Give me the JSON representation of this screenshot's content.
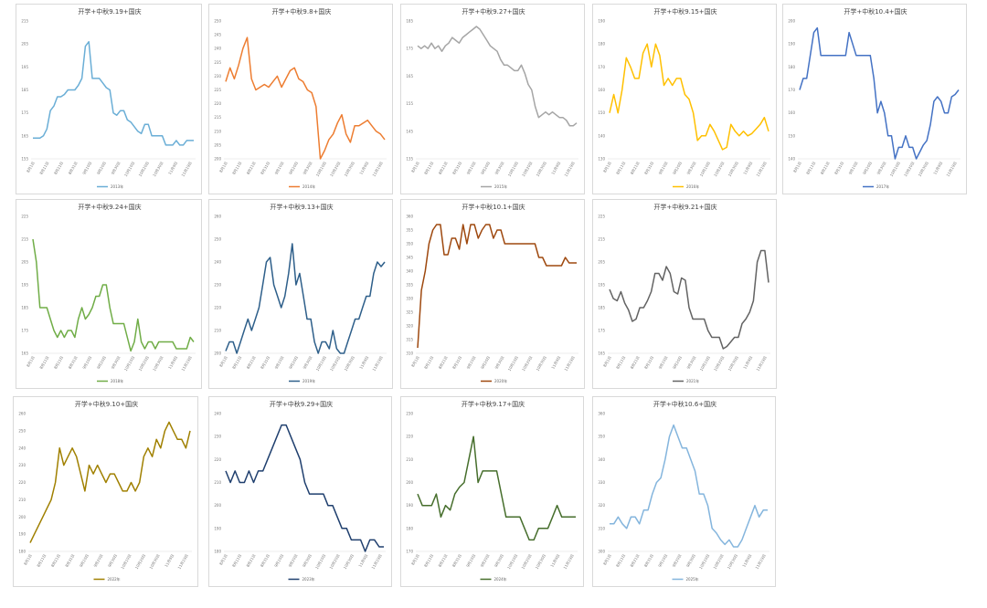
{
  "x_labels": [
    "8月1日",
    "8月11日",
    "8月21日",
    "8月31日",
    "9月10日",
    "9月20日",
    "9月30日",
    "10月10日",
    "10月20日",
    "10月30日",
    "11月9日",
    "11月19日"
  ],
  "chart_data": [
    {
      "type": "line",
      "title": "开学+中秋9.19+国庆",
      "legend": "2013年",
      "color": "#6aaed6",
      "ylim": [
        155,
        215
      ],
      "yticks": [
        155,
        165,
        175,
        185,
        195,
        205,
        215
      ],
      "values": [
        164,
        164,
        164,
        165,
        168,
        176,
        178,
        182,
        182,
        183,
        185,
        185,
        185,
        187,
        190,
        204,
        206,
        190,
        190,
        190,
        188,
        186,
        185,
        175,
        174,
        176,
        176,
        172,
        171,
        169,
        167,
        166,
        170,
        170,
        165,
        165,
        165,
        165,
        161,
        161,
        161,
        163,
        161,
        161,
        163,
        163,
        163
      ]
    },
    {
      "type": "line",
      "title": "开学+中秋9.8+国庆",
      "legend": "2014年",
      "color": "#ed7d31",
      "ylim": [
        200,
        250
      ],
      "yticks": [
        200,
        205,
        210,
        215,
        220,
        225,
        230,
        235,
        240,
        245,
        250
      ],
      "values": [
        228,
        233,
        229,
        234,
        240,
        244,
        229,
        225,
        226,
        227,
        226,
        228,
        230,
        226,
        229,
        232,
        233,
        229,
        228,
        225,
        224,
        219,
        200,
        203,
        207,
        209,
        213,
        216,
        209,
        206,
        212,
        212,
        213,
        214,
        212,
        210,
        209,
        207
      ]
    },
    {
      "type": "line",
      "title": "开学+中秋9.27+国庆",
      "legend": "2015年",
      "color": "#a5a5a5",
      "ylim": [
        135,
        185
      ],
      "yticks": [
        135,
        145,
        155,
        165,
        175,
        185
      ],
      "values": [
        176,
        175,
        176,
        175,
        177,
        175,
        176,
        174,
        176,
        177,
        179,
        178,
        177,
        179,
        180,
        181,
        182,
        183,
        182,
        180,
        178,
        176,
        175,
        174,
        171,
        169,
        169,
        168,
        167,
        167,
        169,
        166,
        162,
        160,
        154,
        150,
        151,
        152,
        151,
        152,
        151,
        150,
        150,
        149,
        147,
        147,
        148
      ]
    },
    {
      "type": "line",
      "title": "开学+中秋9.15+国庆",
      "legend": "2016年",
      "color": "#ffc000",
      "ylim": [
        130,
        190
      ],
      "yticks": [
        130,
        140,
        150,
        160,
        170,
        180,
        190
      ],
      "values": [
        150,
        158,
        150,
        160,
        174,
        170,
        165,
        165,
        176,
        180,
        170,
        180,
        175,
        162,
        165,
        162,
        165,
        165,
        158,
        156,
        150,
        138,
        140,
        140,
        145,
        142,
        138,
        134,
        135,
        145,
        142,
        140,
        142,
        140,
        141,
        143,
        145,
        148,
        142
      ]
    },
    {
      "type": "line",
      "title": "开学+中秋10.4+国庆",
      "legend": "2017年",
      "color": "#4472c4",
      "ylim": [
        140,
        200
      ],
      "yticks": [
        140,
        150,
        160,
        170,
        180,
        190,
        200
      ],
      "values": [
        170,
        175,
        175,
        185,
        195,
        197,
        185,
        185,
        185,
        185,
        185,
        185,
        185,
        185,
        195,
        190,
        185,
        185,
        185,
        185,
        185,
        175,
        160,
        165,
        160,
        150,
        150,
        140,
        145,
        145,
        150,
        145,
        145,
        140,
        143,
        146,
        148,
        155,
        165,
        167,
        165,
        160,
        160,
        167,
        168,
        170
      ]
    },
    {
      "type": "line",
      "title": "开学+中秋9.24+国庆",
      "legend": "2018年",
      "color": "#70ad47",
      "ylim": [
        165,
        225
      ],
      "yticks": [
        165,
        175,
        185,
        195,
        205,
        215,
        225
      ],
      "values": [
        215,
        205,
        185,
        185,
        185,
        180,
        175,
        172,
        175,
        172,
        175,
        175,
        172,
        180,
        185,
        180,
        182,
        185,
        190,
        190,
        195,
        195,
        185,
        178,
        178,
        178,
        178,
        172,
        166,
        170,
        180,
        170,
        167,
        170,
        170,
        167,
        170,
        170,
        170,
        170,
        170,
        167,
        167,
        167,
        167,
        172,
        170
      ]
    },
    {
      "type": "line",
      "title": "开学+中秋9.13+国庆",
      "legend": "2019年",
      "color": "#2e5f8a",
      "ylim": [
        200,
        260
      ],
      "yticks": [
        200,
        210,
        220,
        230,
        240,
        250,
        260
      ],
      "values": [
        201,
        205,
        205,
        200,
        205,
        210,
        215,
        210,
        215,
        220,
        230,
        240,
        242,
        230,
        225,
        220,
        225,
        235,
        248,
        230,
        235,
        225,
        215,
        215,
        205,
        200,
        205,
        205,
        202,
        210,
        202,
        200,
        200,
        205,
        210,
        215,
        215,
        220,
        225,
        225,
        235,
        240,
        238,
        240
      ]
    },
    {
      "type": "line",
      "title": "开学+中秋10.1+国庆",
      "legend": "2020年",
      "color": "#9e480e",
      "ylim": [
        310,
        360
      ],
      "yticks": [
        310,
        315,
        320,
        325,
        330,
        335,
        340,
        345,
        350,
        355,
        360
      ],
      "values": [
        312,
        333,
        340,
        350,
        355,
        357,
        357,
        346,
        346,
        352,
        352,
        348,
        357,
        350,
        357,
        357,
        352,
        355,
        357,
        357,
        352,
        355,
        355,
        350,
        350,
        350,
        350,
        350,
        350,
        350,
        350,
        350,
        345,
        345,
        342,
        342,
        342,
        342,
        342,
        345,
        343,
        343,
        343
      ]
    },
    {
      "type": "line",
      "title": "开学+中秋9.21+国庆",
      "legend": "2021年",
      "color": "#636363",
      "ylim": [
        165,
        225
      ],
      "yticks": [
        165,
        175,
        185,
        195,
        205,
        215,
        225
      ],
      "values": [
        193,
        189,
        188,
        192,
        187,
        184,
        179,
        180,
        185,
        185,
        188,
        192,
        200,
        200,
        197,
        203,
        200,
        192,
        191,
        198,
        197,
        185,
        180,
        180,
        180,
        180,
        175,
        172,
        172,
        172,
        167,
        168,
        170,
        172,
        172,
        178,
        180,
        183,
        188,
        205,
        210,
        210,
        196
      ]
    },
    {
      "type": "line",
      "title": "开学+中秋9.10+国庆",
      "legend": "2022年",
      "color": "#a08000",
      "ylim": [
        180,
        260
      ],
      "yticks": [
        180,
        190,
        200,
        210,
        220,
        230,
        240,
        250,
        260
      ],
      "values": [
        185,
        190,
        195,
        200,
        205,
        210,
        220,
        240,
        230,
        235,
        240,
        235,
        225,
        215,
        230,
        225,
        230,
        225,
        220,
        225,
        225,
        220,
        215,
        215,
        220,
        215,
        220,
        235,
        240,
        235,
        245,
        240,
        250,
        255,
        250,
        245,
        245,
        240,
        250
      ]
    },
    {
      "type": "line",
      "title": "开学+中秋9.29+国庆",
      "legend": "2023年",
      "color": "#1f3f6e",
      "ylim": [
        180,
        240
      ],
      "yticks": [
        180,
        190,
        200,
        210,
        220,
        230,
        240
      ],
      "values": [
        215,
        210,
        215,
        210,
        210,
        215,
        210,
        215,
        215,
        220,
        225,
        230,
        235,
        235,
        230,
        225,
        220,
        210,
        205,
        205,
        205,
        205,
        200,
        200,
        195,
        190,
        190,
        185,
        185,
        185,
        180,
        185,
        185,
        182,
        182
      ]
    },
    {
      "type": "line",
      "title": "开学+中秋9.17+国庆",
      "legend": "2024年",
      "color": "#466e2c",
      "ylim": [
        170,
        230
      ],
      "yticks": [
        170,
        180,
        190,
        200,
        210,
        220,
        230
      ],
      "values": [
        195,
        190,
        190,
        190,
        195,
        185,
        190,
        188,
        195,
        198,
        200,
        210,
        220,
        200,
        205,
        205,
        205,
        205,
        195,
        185,
        185,
        185,
        185,
        180,
        175,
        175,
        180,
        180,
        180,
        185,
        190,
        185,
        185,
        185,
        185
      ]
    },
    {
      "type": "line",
      "title": "开学+中秋10.6+国庆",
      "legend": "2025年",
      "color": "#84b5dd",
      "ylim": [
        300,
        360
      ],
      "yticks": [
        300,
        310,
        320,
        330,
        340,
        350,
        360
      ],
      "values": [
        312,
        312,
        315,
        312,
        310,
        315,
        315,
        312,
        318,
        318,
        325,
        330,
        332,
        340,
        350,
        355,
        350,
        345,
        345,
        340,
        335,
        325,
        325,
        320,
        310,
        308,
        305,
        303,
        305,
        302,
        302,
        305,
        310,
        315,
        320,
        315,
        318,
        318
      ]
    }
  ]
}
